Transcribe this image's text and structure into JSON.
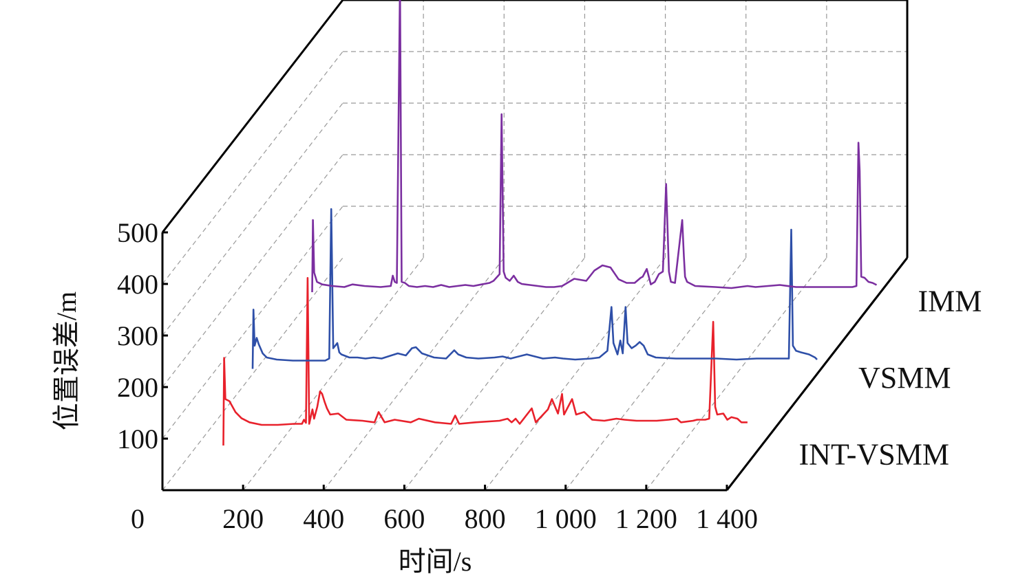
{
  "chart_data": {
    "type": "line",
    "style": "3d-waterfall",
    "xlabel": "时间/s",
    "ylabel": "位置误差/m",
    "xlim": [
      0,
      1400
    ],
    "ylim": [
      0,
      500
    ],
    "x_ticks": [
      {
        "value": 0,
        "label": "0"
      },
      {
        "value": 200,
        "label": "200"
      },
      {
        "value": 400,
        "label": "400"
      },
      {
        "value": 600,
        "label": "600"
      },
      {
        "value": 800,
        "label": "800"
      },
      {
        "value": 1000,
        "label": "1 000"
      },
      {
        "value": 1200,
        "label": "1 200"
      },
      {
        "value": 1400,
        "label": "1 400"
      }
    ],
    "y_ticks": [
      {
        "value": 100,
        "label": "100"
      },
      {
        "value": 200,
        "label": "200"
      },
      {
        "value": 300,
        "label": "300"
      },
      {
        "value": 400,
        "label": "400"
      },
      {
        "value": 500,
        "label": "500"
      }
    ],
    "grid": true,
    "series": [
      {
        "name": "INT-VSMM",
        "color": "#e8212b",
        "points": [
          [
            75,
            10
          ],
          [
            77,
            180
          ],
          [
            80,
            100
          ],
          [
            90,
            96
          ],
          [
            105,
            75
          ],
          [
            120,
            63
          ],
          [
            140,
            55
          ],
          [
            170,
            50
          ],
          [
            210,
            50
          ],
          [
            250,
            52
          ],
          [
            270,
            52
          ],
          [
            275,
            60
          ],
          [
            280,
            54
          ],
          [
            284,
            335
          ],
          [
            288,
            52
          ],
          [
            296,
            80
          ],
          [
            300,
            62
          ],
          [
            308,
            85
          ],
          [
            315,
            115
          ],
          [
            320,
            110
          ],
          [
            326,
            95
          ],
          [
            332,
            82
          ],
          [
            340,
            70
          ],
          [
            360,
            72
          ],
          [
            380,
            60
          ],
          [
            420,
            58
          ],
          [
            450,
            55
          ],
          [
            460,
            75
          ],
          [
            475,
            55
          ],
          [
            500,
            60
          ],
          [
            540,
            55
          ],
          [
            560,
            62
          ],
          [
            600,
            55
          ],
          [
            640,
            52
          ],
          [
            650,
            68
          ],
          [
            660,
            52
          ],
          [
            700,
            55
          ],
          [
            760,
            58
          ],
          [
            780,
            62
          ],
          [
            790,
            55
          ],
          [
            800,
            62
          ],
          [
            810,
            52
          ],
          [
            840,
            82
          ],
          [
            850,
            55
          ],
          [
            880,
            80
          ],
          [
            890,
            100
          ],
          [
            905,
            72
          ],
          [
            915,
            110
          ],
          [
            920,
            70
          ],
          [
            940,
            100
          ],
          [
            950,
            70
          ],
          [
            970,
            75
          ],
          [
            990,
            60
          ],
          [
            1020,
            58
          ],
          [
            1050,
            62
          ],
          [
            1070,
            60
          ],
          [
            1100,
            58
          ],
          [
            1150,
            58
          ],
          [
            1180,
            60
          ],
          [
            1200,
            62
          ],
          [
            1210,
            55
          ],
          [
            1240,
            58
          ],
          [
            1250,
            60
          ],
          [
            1270,
            60
          ],
          [
            1280,
            62
          ],
          [
            1290,
            250
          ],
          [
            1295,
            85
          ],
          [
            1300,
            70
          ],
          [
            1315,
            72
          ],
          [
            1325,
            60
          ],
          [
            1335,
            65
          ],
          [
            1350,
            62
          ],
          [
            1360,
            55
          ],
          [
            1375,
            55
          ]
        ]
      },
      {
        "name": "VSMM",
        "color": "#2e4fa8",
        "points": [
          [
            0,
            10
          ],
          [
            2,
            125
          ],
          [
            5,
            55
          ],
          [
            10,
            70
          ],
          [
            15,
            58
          ],
          [
            25,
            40
          ],
          [
            35,
            32
          ],
          [
            60,
            28
          ],
          [
            100,
            26
          ],
          [
            150,
            26
          ],
          [
            180,
            26
          ],
          [
            190,
            30
          ],
          [
            195,
            320
          ],
          [
            200,
            50
          ],
          [
            210,
            60
          ],
          [
            215,
            42
          ],
          [
            220,
            38
          ],
          [
            240,
            32
          ],
          [
            260,
            32
          ],
          [
            280,
            30
          ],
          [
            300,
            32
          ],
          [
            320,
            30
          ],
          [
            340,
            35
          ],
          [
            360,
            40
          ],
          [
            380,
            36
          ],
          [
            395,
            50
          ],
          [
            405,
            52
          ],
          [
            420,
            40
          ],
          [
            450,
            32
          ],
          [
            480,
            30
          ],
          [
            500,
            46
          ],
          [
            510,
            38
          ],
          [
            530,
            32
          ],
          [
            560,
            30
          ],
          [
            600,
            32
          ],
          [
            620,
            34
          ],
          [
            640,
            30
          ],
          [
            680,
            38
          ],
          [
            700,
            34
          ],
          [
            720,
            30
          ],
          [
            750,
            32
          ],
          [
            770,
            30
          ],
          [
            800,
            28
          ],
          [
            840,
            30
          ],
          [
            860,
            32
          ],
          [
            880,
            45
          ],
          [
            890,
            130
          ],
          [
            895,
            60
          ],
          [
            905,
            38
          ],
          [
            912,
            65
          ],
          [
            918,
            40
          ],
          [
            925,
            130
          ],
          [
            930,
            60
          ],
          [
            940,
            50
          ],
          [
            950,
            55
          ],
          [
            960,
            62
          ],
          [
            970,
            55
          ],
          [
            980,
            38
          ],
          [
            1000,
            32
          ],
          [
            1050,
            30
          ],
          [
            1100,
            30
          ],
          [
            1150,
            30
          ],
          [
            1200,
            28
          ],
          [
            1250,
            30
          ],
          [
            1300,
            30
          ],
          [
            1330,
            30
          ],
          [
            1336,
            280
          ],
          [
            1340,
            55
          ],
          [
            1348,
            45
          ],
          [
            1360,
            42
          ],
          [
            1380,
            38
          ],
          [
            1395,
            32
          ],
          [
            1400,
            28
          ]
        ]
      },
      {
        "name": "IMM",
        "color": "#7b2fa0",
        "points": [
          [
            0,
            10
          ],
          [
            2,
            150
          ],
          [
            5,
            48
          ],
          [
            12,
            30
          ],
          [
            25,
            25
          ],
          [
            50,
            22
          ],
          [
            80,
            20
          ],
          [
            100,
            25
          ],
          [
            130,
            22
          ],
          [
            170,
            20
          ],
          [
            195,
            22
          ],
          [
            200,
            42
          ],
          [
            205,
            30
          ],
          [
            210,
            28
          ],
          [
            218,
            610
          ],
          [
            222,
            30
          ],
          [
            230,
            28
          ],
          [
            240,
            22
          ],
          [
            260,
            20
          ],
          [
            280,
            22
          ],
          [
            300,
            20
          ],
          [
            320,
            24
          ],
          [
            340,
            20
          ],
          [
            360,
            22
          ],
          [
            380,
            24
          ],
          [
            400,
            22
          ],
          [
            420,
            25
          ],
          [
            440,
            28
          ],
          [
            450,
            32
          ],
          [
            465,
            45
          ],
          [
            470,
            355
          ],
          [
            475,
            50
          ],
          [
            480,
            38
          ],
          [
            490,
            32
          ],
          [
            500,
            42
          ],
          [
            510,
            30
          ],
          [
            520,
            26
          ],
          [
            540,
            24
          ],
          [
            560,
            22
          ],
          [
            580,
            20
          ],
          [
            600,
            20
          ],
          [
            620,
            22
          ],
          [
            650,
            36
          ],
          [
            680,
            32
          ],
          [
            700,
            52
          ],
          [
            720,
            62
          ],
          [
            740,
            58
          ],
          [
            760,
            35
          ],
          [
            780,
            28
          ],
          [
            800,
            28
          ],
          [
            815,
            38
          ],
          [
            820,
            40
          ],
          [
            830,
            55
          ],
          [
            840,
            25
          ],
          [
            850,
            30
          ],
          [
            860,
            45
          ],
          [
            870,
            50
          ],
          [
            878,
            220
          ],
          [
            885,
            50
          ],
          [
            890,
            30
          ],
          [
            900,
            28
          ],
          [
            918,
            150
          ],
          [
            922,
            80
          ],
          [
            925,
            40
          ],
          [
            930,
            30
          ],
          [
            950,
            22
          ],
          [
            1000,
            20
          ],
          [
            1040,
            18
          ],
          [
            1080,
            22
          ],
          [
            1100,
            20
          ],
          [
            1130,
            22
          ],
          [
            1160,
            24
          ],
          [
            1200,
            20
          ],
          [
            1250,
            20
          ],
          [
            1300,
            20
          ],
          [
            1340,
            20
          ],
          [
            1350,
            22
          ],
          [
            1355,
            300
          ],
          [
            1358,
            245
          ],
          [
            1362,
            40
          ],
          [
            1370,
            38
          ],
          [
            1380,
            30
          ],
          [
            1390,
            28
          ],
          [
            1400,
            24
          ]
        ]
      }
    ]
  }
}
